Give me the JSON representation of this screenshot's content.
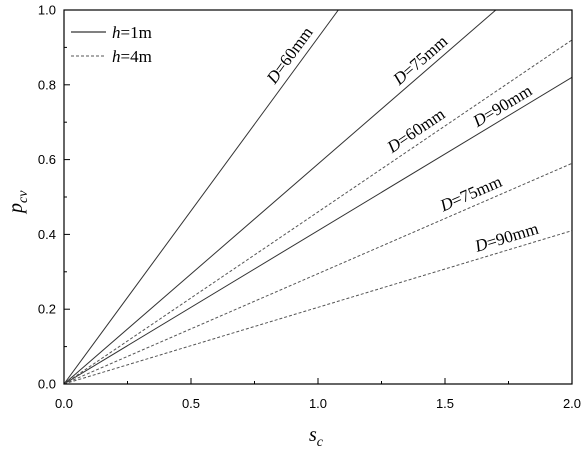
{
  "chart_data": {
    "type": "line",
    "title": "",
    "xlabel_main": "s",
    "xlabel_sub": "c",
    "ylabel_main": "p",
    "ylabel_sub": "cv",
    "xlim": [
      0,
      2
    ],
    "ylim": [
      0,
      1
    ],
    "xticks": [
      0,
      0.5,
      1,
      1.5,
      2
    ],
    "xtick_labels": [
      "0.0",
      "0.5",
      "1.0",
      "1.5",
      "2.0"
    ],
    "yticks": [
      0,
      0.2,
      0.4,
      0.6,
      0.8,
      1
    ],
    "ytick_labels": [
      "0.0",
      "0.2",
      "0.4",
      "0.6",
      "0.8",
      "1.0"
    ],
    "grid": false,
    "legend_placement": "top-left",
    "legend": [
      {
        "var": "h",
        "rest": "=1m",
        "style": "solid"
      },
      {
        "var": "h",
        "rest": "=4m",
        "style": "dashed"
      }
    ],
    "series": [
      {
        "group": "h=1m",
        "style": "solid",
        "x": [
          0,
          1.08
        ],
        "y": [
          0,
          1.0
        ],
        "label_var": "D",
        "label_rest": "=60mm"
      },
      {
        "group": "h=1m",
        "style": "solid",
        "x": [
          0,
          1.7
        ],
        "y": [
          0,
          1.0
        ],
        "label_var": "D",
        "label_rest": "=75mm"
      },
      {
        "group": "h=1m",
        "style": "solid",
        "x": [
          0,
          2.0
        ],
        "y": [
          0,
          0.82
        ],
        "label_var": "D",
        "label_rest": "=90mm"
      },
      {
        "group": "h=4m",
        "style": "dashed",
        "x": [
          0,
          2.0
        ],
        "y": [
          0,
          0.92
        ],
        "label_var": "D",
        "label_rest": "=60mm"
      },
      {
        "group": "h=4m",
        "style": "dashed",
        "x": [
          0,
          2.0
        ],
        "y": [
          0,
          0.59
        ],
        "label_var": "D",
        "label_rest": "=75mm"
      },
      {
        "group": "h=4m",
        "style": "dashed",
        "x": [
          0,
          2.0
        ],
        "y": [
          0,
          0.41
        ],
        "label_var": "D",
        "label_rest": "=90mm"
      }
    ],
    "colors": {
      "line": "#555555",
      "axis": "#000000"
    }
  }
}
